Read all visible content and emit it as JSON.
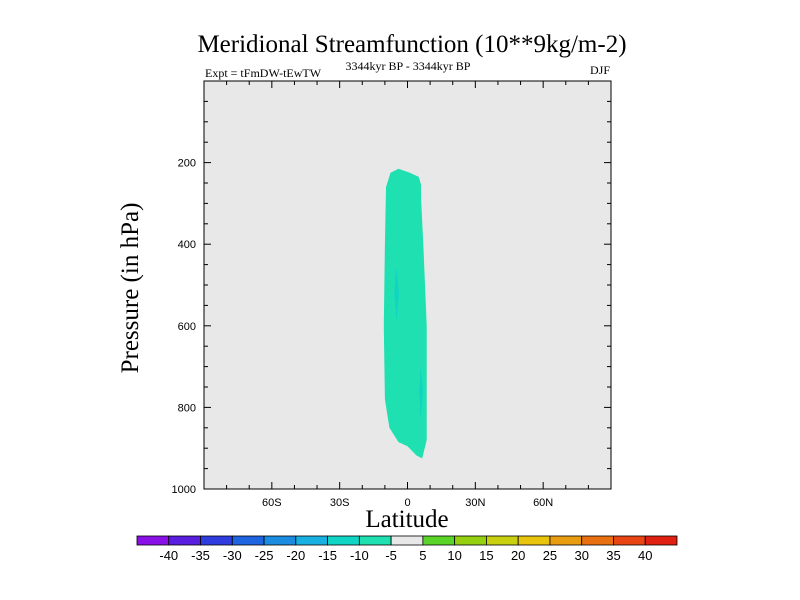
{
  "chart_data": {
    "type": "contour",
    "title": "Meridional Streamfunction (10**9kg/m-2)",
    "left_label": "Expt = tFmDW-tEwTW",
    "center_label": "3344kyr BP - 3344kyr BP",
    "right_label": "DJF",
    "xlabel": "Latitude",
    "ylabel": "Pressure (in hPa)",
    "xlim": [
      -90,
      90
    ],
    "ylim": [
      1000,
      0
    ],
    "x_ticks": [
      {
        "value": -60,
        "label": "60S"
      },
      {
        "value": -30,
        "label": "30S"
      },
      {
        "value": 0,
        "label": "0"
      },
      {
        "value": 30,
        "label": "30N"
      },
      {
        "value": 60,
        "label": "60N"
      }
    ],
    "y_ticks": [
      {
        "value": 200,
        "label": "200"
      },
      {
        "value": 400,
        "label": "400"
      },
      {
        "value": 600,
        "label": "600"
      },
      {
        "value": 800,
        "label": "800"
      },
      {
        "value": 1000,
        "label": "1000"
      }
    ],
    "background_color": "#e8e8e8",
    "filled_region": {
      "level": "-10 to -5",
      "color": "#1fe0b0",
      "outline": [
        {
          "lat": -7.5,
          "p": 225
        },
        {
          "lat": -4,
          "p": 215
        },
        {
          "lat": 1,
          "p": 225
        },
        {
          "lat": 5,
          "p": 235
        },
        {
          "lat": 6,
          "p": 255
        },
        {
          "lat": 6,
          "p": 290
        },
        {
          "lat": 7,
          "p": 400
        },
        {
          "lat": 8.5,
          "p": 600
        },
        {
          "lat": 8.5,
          "p": 750
        },
        {
          "lat": 8.5,
          "p": 880
        },
        {
          "lat": 6.5,
          "p": 925
        },
        {
          "lat": 4,
          "p": 918
        },
        {
          "lat": 0,
          "p": 895
        },
        {
          "lat": -4,
          "p": 885
        },
        {
          "lat": -8,
          "p": 850
        },
        {
          "lat": -10,
          "p": 780
        },
        {
          "lat": -10.5,
          "p": 600
        },
        {
          "lat": -10,
          "p": 400
        },
        {
          "lat": -9.5,
          "p": 260
        }
      ]
    },
    "inner_regions": [
      {
        "level": "-15 to -10",
        "color": "#10d4c4",
        "outline": [
          {
            "lat": -5,
            "p": 455
          },
          {
            "lat": -3.8,
            "p": 520
          },
          {
            "lat": -4.8,
            "p": 590
          },
          {
            "lat": -5.8,
            "p": 520
          }
        ]
      },
      {
        "level": "-15 to -10",
        "color": "#10d4c4",
        "outline": [
          {
            "lat": 5.8,
            "p": 700
          },
          {
            "lat": 6.8,
            "p": 760
          },
          {
            "lat": 5.8,
            "p": 830
          },
          {
            "lat": 5.2,
            "p": 760
          }
        ]
      }
    ],
    "colorbar": {
      "labels": [
        "-40",
        "-35",
        "-30",
        "-25",
        "-20",
        "-15",
        "-10",
        "-5",
        "5",
        "10",
        "15",
        "20",
        "25",
        "30",
        "35",
        "40"
      ],
      "colors": [
        "#8a10e8",
        "#5a1ee0",
        "#2f3ce0",
        "#1f64e0",
        "#1c8ce0",
        "#18b0e0",
        "#10d4c4",
        "#1fe0b0",
        "#e8e8e8",
        "#5ad428",
        "#94d010",
        "#c8d010",
        "#e8c40c",
        "#e89c10",
        "#e87010",
        "#e84414",
        "#e02010"
      ]
    }
  }
}
